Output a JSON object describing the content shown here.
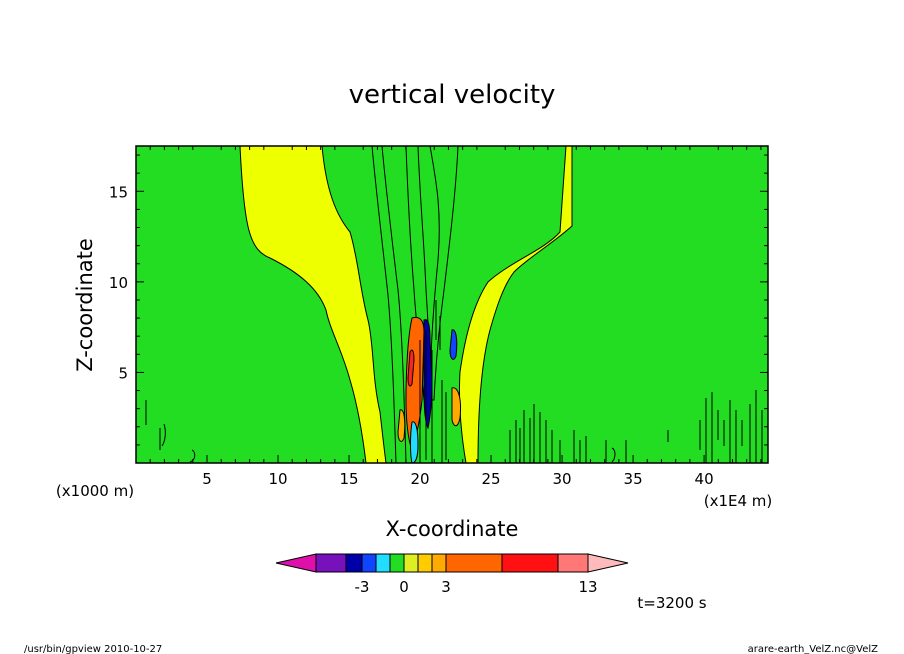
{
  "chart_data": {
    "type": "heatmap",
    "title": "vertical velocity",
    "xlabel": "X-coordinate",
    "ylabel": "Z-coordinate",
    "x_unit_left": "(x1000 m)",
    "x_unit_right": "(x1E4 m)",
    "xlim": [
      0,
      44.5
    ],
    "ylim": [
      0,
      17.5
    ],
    "x_ticks": [
      "5",
      "10",
      "15",
      "20",
      "25",
      "30",
      "35",
      "40"
    ],
    "y_ticks": [
      "5",
      "10",
      "15"
    ],
    "colorbar": {
      "tick_labels": [
        "-3",
        "0",
        "3",
        "13"
      ],
      "colors": [
        "#dd11aa",
        "#7711bb",
        "#0000aa",
        "#1144ff",
        "#22ddff",
        "#22dd22",
        "#ddee22",
        "#ffcc00",
        "#ffaa00",
        "#ff6600",
        "#ff1111",
        "#ff7777",
        "#ffbbbb"
      ]
    },
    "time_label": "t=3200 s",
    "grid": false
  },
  "footer": {
    "left": "/usr/bin/gpview   2010-10-27",
    "right": "arare-earth_VelZ.nc@VelZ"
  }
}
